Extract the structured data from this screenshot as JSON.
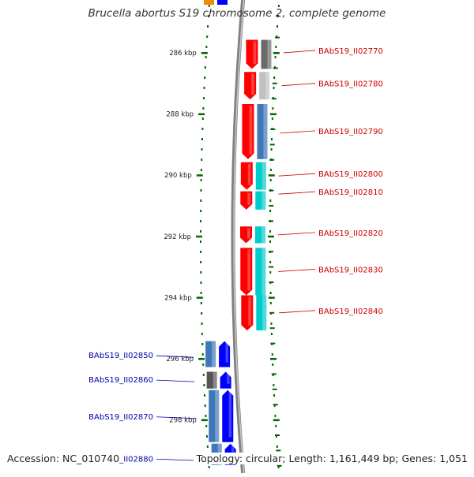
{
  "title": "Brucella abortus S19 chromosome 2, complete genome",
  "footer": {
    "accession_label": "Accession:",
    "accession": "NC_010740",
    "topology_label": "Topology:",
    "topology": "circular;",
    "length_label": "Length:",
    "length": "1,161,449 bp;",
    "genes_label": "Genes:",
    "genes": "1,051"
  },
  "colors": {
    "forward_gene": "#ff0000",
    "reverse_gene": "#0000ff",
    "forward_label": "#cc0000",
    "reverse_label": "#0000aa",
    "ruler": "#006600",
    "backbone": "#808080"
  },
  "ruler_labels": [
    {
      "label": "286 kbp",
      "kbp": 286
    },
    {
      "label": "288 kbp",
      "kbp": 288
    },
    {
      "label": "290 kbp",
      "kbp": 290
    },
    {
      "label": "292 kbp",
      "kbp": 292
    },
    {
      "label": "294 kbp",
      "kbp": 294
    },
    {
      "label": "296 kbp",
      "kbp": 296
    },
    {
      "label": "298 kbp",
      "kbp": 298
    }
  ],
  "genes_forward": [
    {
      "label": "BAbS19_II02770",
      "start": 285.55,
      "end": 286.55,
      "cog": "#6a6a6a"
    },
    {
      "label": "BAbS19_II02780",
      "start": 286.6,
      "end": 287.55,
      "cog": "#c0c0c0"
    },
    {
      "label": "BAbS19_II02790",
      "start": 287.65,
      "end": 289.5,
      "cog": "#3f78b8"
    },
    {
      "label": "BAbS19_II02800",
      "start": 289.55,
      "end": 290.5,
      "cog": "#00cccc"
    },
    {
      "label": "BAbS19_II02810",
      "start": 290.5,
      "end": 291.15,
      "cog": "#00cccc"
    },
    {
      "label": "BAbS19_II02820",
      "start": 291.65,
      "end": 292.25,
      "cog": "#00cccc"
    },
    {
      "label": "BAbS19_II02830",
      "start": 292.35,
      "end": 293.95,
      "cog": "#00cccc"
    },
    {
      "label": "BAbS19_II02840",
      "start": 293.9,
      "end": 295.1,
      "cog": "#00cccc"
    }
  ],
  "genes_reverse": [
    {
      "label": "BAbS19_II02850",
      "start": 295.4,
      "end": 296.3,
      "cog": "#3f78b8"
    },
    {
      "label": "BAbS19_II02860",
      "start": 296.4,
      "end": 297.0,
      "cog": "#555555"
    },
    {
      "label": "BAbS19_II02870",
      "start": 297.0,
      "end": 298.75,
      "cog": "#3f78b8"
    },
    {
      "label": "BAbS19_II02880",
      "start": 298.75,
      "end": 299.5,
      "cog": "#3f78b8"
    }
  ]
}
